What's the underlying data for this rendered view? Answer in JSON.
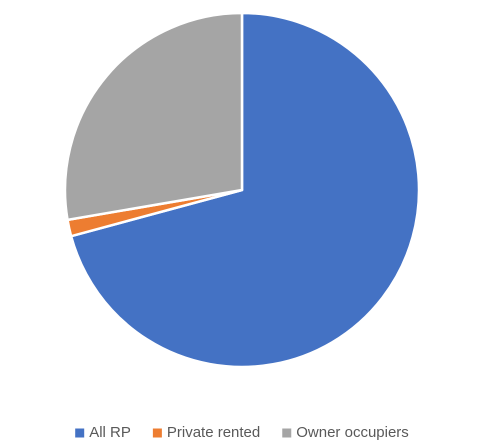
{
  "chart_data": {
    "type": "pie",
    "categories": [
      "All RP",
      "Private rented",
      "Owner occupiers"
    ],
    "values": [
      70.8,
      1.5,
      27.7
    ],
    "colors": [
      "#4472c4",
      "#ed7d31",
      "#a5a5a5"
    ],
    "legend": "bottom"
  }
}
